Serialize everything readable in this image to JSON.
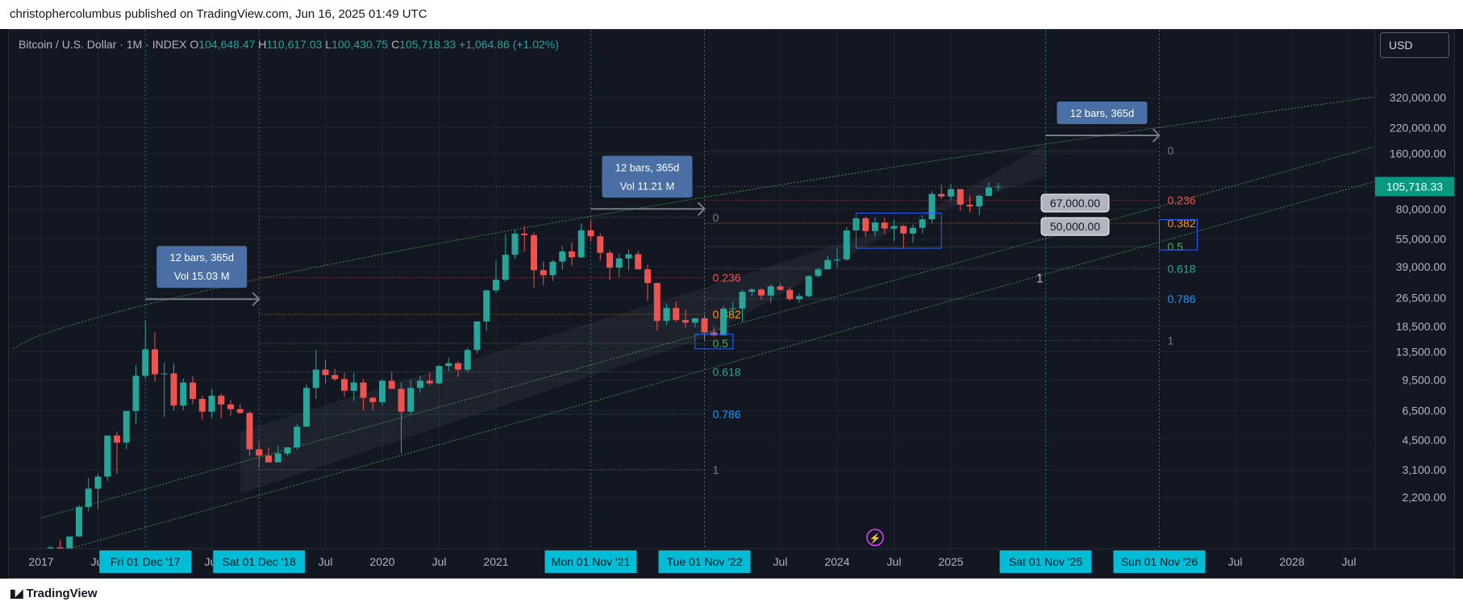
{
  "header": {
    "published": "christophercolumbus published on TradingView.com, Jun 16, 2025 01:49 UTC"
  },
  "legend": {
    "symbol": "Bitcoin / U.S. Dollar · 1M · INDEX",
    "open_label": "O",
    "open": "104,648.47",
    "high_label": "H",
    "high": "110,617.03",
    "low_label": "L",
    "low": "100,430.75",
    "close_label": "C",
    "close": "105,718.33",
    "change": "+1,064.86 (+1.02%)"
  },
  "currency": "USD",
  "footer": {
    "brand": "TradingView"
  },
  "colors": {
    "bg": "#131722",
    "up": "#26a69a",
    "down": "#ef5350",
    "price_badge": "#089981",
    "time_badge": "#00bcd4",
    "channel": "#4caf50",
    "measure_box": "#4a6fa5"
  },
  "chart_data": {
    "type": "candlestick",
    "scale": "log",
    "y_ticks": [
      "320,000.00",
      "220,000.00",
      "160,000.00",
      "80,000.00",
      "55,000.00",
      "39,000.00",
      "26,500.00",
      "18,500.00",
      "13,500.00",
      "9,500.00",
      "6,500.00",
      "4,500.00",
      "3,100.00",
      "2,200.00"
    ],
    "y_tick_values": [
      320000,
      220000,
      160000,
      80000,
      55000,
      39000,
      26500,
      18500,
      13500,
      9500,
      6500,
      4500,
      3100,
      2200
    ],
    "last_price": "105,718.33",
    "last_price_value": 105718.33,
    "x_ticks": [
      {
        "label": "2017",
        "m": 0
      },
      {
        "label": "Jul",
        "m": 6
      },
      {
        "label": "Jul",
        "m": 18
      },
      {
        "label": "Jul",
        "m": 30
      },
      {
        "label": "2020",
        "m": 36
      },
      {
        "label": "Jul",
        "m": 42
      },
      {
        "label": "2021",
        "m": 48
      },
      {
        "label": "Jul",
        "m": 78
      },
      {
        "label": "2024",
        "m": 84
      },
      {
        "label": "Jul",
        "m": 90
      },
      {
        "label": "2025",
        "m": 96
      },
      {
        "label": "Jul",
        "m": 126
      },
      {
        "label": "2028",
        "m": 132
      },
      {
        "label": "Jul",
        "m": 138
      }
    ],
    "date_badges": [
      {
        "label": "Fri 01 Dec '17",
        "m": 11
      },
      {
        "label": "Sat 01 Dec '18",
        "m": 23
      },
      {
        "label": "Mon 01 Nov '21",
        "m": 58
      },
      {
        "label": "Tue 01 Nov '22",
        "m": 70
      },
      {
        "label": "Sat 01 Nov '25",
        "m": 106
      },
      {
        "label": "Sun 01 Nov '26",
        "m": 118
      }
    ],
    "price_badges": [
      "67,000.00",
      "50,000.00"
    ],
    "price_badge_values": [
      67000,
      50000
    ],
    "measures": [
      {
        "line1": "12 bars, 365d",
        "line2": "Vol 15.03 M",
        "m0": 11,
        "m1": 23,
        "price": 26000
      },
      {
        "line1": "12 bars, 365d",
        "line2": "Vol 11.21 M",
        "m0": 58,
        "m1": 70,
        "price": 80000
      },
      {
        "line1": "12 bars, 365d",
        "line2": "",
        "m0": 106,
        "m1": 118,
        "price": 200000
      }
    ],
    "fib_sets": [
      {
        "m0": 23,
        "m1": 70,
        "levels": [
          {
            "label": "0",
            "price": 72000
          },
          {
            "label": "0.236",
            "price": 34000
          },
          {
            "label": "0.382",
            "price": 21500
          },
          {
            "label": "0.5",
            "price": 15000
          },
          {
            "label": "0.618",
            "price": 10500
          },
          {
            "label": "0.786",
            "price": 6200
          },
          {
            "label": "1",
            "price": 3100
          }
        ]
      },
      {
        "m0": 70,
        "m1": 118,
        "levels": [
          {
            "label": "0",
            "price": 165000
          },
          {
            "label": "0.236",
            "price": 89000
          },
          {
            "label": "0.382",
            "price": 67000
          },
          {
            "label": "0.5",
            "price": 50000
          },
          {
            "label": "0.618",
            "price": 38000
          },
          {
            "label": "0.786",
            "price": 26000
          },
          {
            "label": "1",
            "price": 15500
          }
        ]
      }
    ],
    "annotations": [
      {
        "label": "1",
        "m": 105,
        "price": 32000
      }
    ],
    "candles": [
      [
        1000,
        1100,
        900,
        980
      ],
      [
        980,
        1200,
        950,
        1180
      ],
      [
        1180,
        1300,
        1050,
        1080
      ],
      [
        1080,
        1350,
        1050,
        1350
      ],
      [
        1350,
        2000,
        1350,
        1950
      ],
      [
        1950,
        2800,
        1850,
        2450
      ],
      [
        2450,
        2950,
        1900,
        2850
      ],
      [
        2850,
        4750,
        2700,
        4750
      ],
      [
        4750,
        5000,
        2950,
        4350
      ],
      [
        4350,
        6450,
        4000,
        6450
      ],
      [
        6450,
        11400,
        5500,
        10000
      ],
      [
        10000,
        19800,
        9600,
        13900
      ],
      [
        13900,
        17200,
        9300,
        10200
      ],
      [
        10200,
        11800,
        6000,
        10300
      ],
      [
        10300,
        11700,
        6500,
        6900
      ],
      [
        6900,
        9700,
        6500,
        9200
      ],
      [
        9200,
        10000,
        7000,
        7500
      ],
      [
        7500,
        7800,
        5800,
        6400
      ],
      [
        6400,
        8500,
        5900,
        7800
      ],
      [
        7800,
        8000,
        5900,
        7000
      ],
      [
        7000,
        7400,
        6100,
        6600
      ],
      [
        6600,
        7000,
        6200,
        6300
      ],
      [
        6300,
        6400,
        3700,
        4000
      ],
      [
        4000,
        4400,
        3200,
        3700
      ],
      [
        3700,
        4100,
        3400,
        3400
      ],
      [
        3400,
        4200,
        3400,
        3800
      ],
      [
        3800,
        4100,
        3700,
        4100
      ],
      [
        4100,
        5500,
        4000,
        5300
      ],
      [
        5300,
        9000,
        5300,
        8600
      ],
      [
        8600,
        13800,
        7500,
        10800
      ],
      [
        10800,
        12200,
        9100,
        10100
      ],
      [
        10100,
        10900,
        9400,
        9600
      ],
      [
        9600,
        10400,
        7700,
        8300
      ],
      [
        8300,
        10400,
        7300,
        9200
      ],
      [
        9200,
        9600,
        6500,
        7600
      ],
      [
        7600,
        7700,
        6500,
        7200
      ],
      [
        7200,
        9600,
        6900,
        9400
      ],
      [
        9400,
        10500,
        8500,
        8500
      ],
      [
        8500,
        9200,
        3800,
        6400
      ],
      [
        6400,
        9500,
        6200,
        8600
      ],
      [
        8600,
        10000,
        8100,
        9400
      ],
      [
        9400,
        10400,
        8900,
        9100
      ],
      [
        9100,
        11400,
        9000,
        11300
      ],
      [
        11300,
        12500,
        10600,
        11700
      ],
      [
        11700,
        12000,
        9800,
        10800
      ],
      [
        10800,
        14100,
        10400,
        13800
      ],
      [
        13800,
        19000,
        13200,
        19700
      ],
      [
        19700,
        29300,
        17500,
        29000
      ],
      [
        29000,
        41900,
        28100,
        33100
      ],
      [
        33100,
        58300,
        32300,
        45200
      ],
      [
        45200,
        61700,
        43000,
        58800
      ],
      [
        58800,
        64800,
        47000,
        57700
      ],
      [
        57700,
        59600,
        30000,
        37300
      ],
      [
        37300,
        41300,
        31100,
        35000
      ],
      [
        35000,
        42300,
        32700,
        41500
      ],
      [
        41500,
        50500,
        37400,
        47100
      ],
      [
        47100,
        52900,
        39600,
        43800
      ],
      [
        43800,
        67000,
        43300,
        61300
      ],
      [
        61300,
        69000,
        53200,
        56900
      ],
      [
        56900,
        59100,
        42000,
        46300
      ],
      [
        46300,
        47800,
        33000,
        38500
      ],
      [
        38500,
        45800,
        34300,
        43200
      ],
      [
        43200,
        48200,
        37200,
        45500
      ],
      [
        45500,
        47400,
        37700,
        37700
      ],
      [
        37700,
        40000,
        25400,
        31800
      ],
      [
        31800,
        31900,
        17600,
        19800
      ],
      [
        19800,
        24700,
        18800,
        23300
      ],
      [
        23300,
        25200,
        19600,
        20050
      ],
      [
        20050,
        22800,
        18200,
        19400
      ],
      [
        19400,
        20500,
        18300,
        20500
      ],
      [
        20500,
        21400,
        15500,
        17200
      ],
      [
        17200,
        18400,
        16300,
        16550
      ],
      [
        16550,
        23900,
        16500,
        23100
      ],
      [
        23100,
        25200,
        21400,
        23150
      ],
      [
        23150,
        29200,
        19600,
        28500
      ],
      [
        28500,
        30000,
        27000,
        29300
      ],
      [
        29300,
        29800,
        25800,
        27200
      ],
      [
        27200,
        31400,
        24800,
        30500
      ],
      [
        30500,
        31800,
        28900,
        29200
      ],
      [
        29200,
        30200,
        25400,
        26000
      ],
      [
        26000,
        28000,
        24900,
        27000
      ],
      [
        27000,
        35000,
        26600,
        34700
      ],
      [
        34700,
        38500,
        34100,
        37700
      ],
      [
        37700,
        44700,
        37600,
        42300
      ],
      [
        42300,
        48900,
        38500,
        42600
      ],
      [
        42600,
        63900,
        41900,
        61200
      ],
      [
        61200,
        73800,
        59000,
        71300
      ],
      [
        71300,
        72800,
        56500,
        60700
      ],
      [
        60700,
        72000,
        56600,
        67500
      ],
      [
        67500,
        71900,
        58500,
        62700
      ],
      [
        62700,
        70000,
        53500,
        64600
      ],
      [
        64600,
        65600,
        49000,
        58900
      ],
      [
        58900,
        66000,
        52500,
        63300
      ],
      [
        63300,
        73600,
        58900,
        70300
      ],
      [
        70300,
        99800,
        66800,
        96400
      ],
      [
        96400,
        108300,
        90500,
        93400
      ],
      [
        93400,
        109400,
        89100,
        102400
      ],
      [
        102400,
        102700,
        78200,
        84400
      ],
      [
        84400,
        95000,
        76600,
        82500
      ],
      [
        82500,
        95700,
        74400,
        94200
      ],
      [
        94200,
        111900,
        93400,
        104600
      ],
      [
        104650,
        110617,
        100430,
        105718
      ]
    ]
  }
}
